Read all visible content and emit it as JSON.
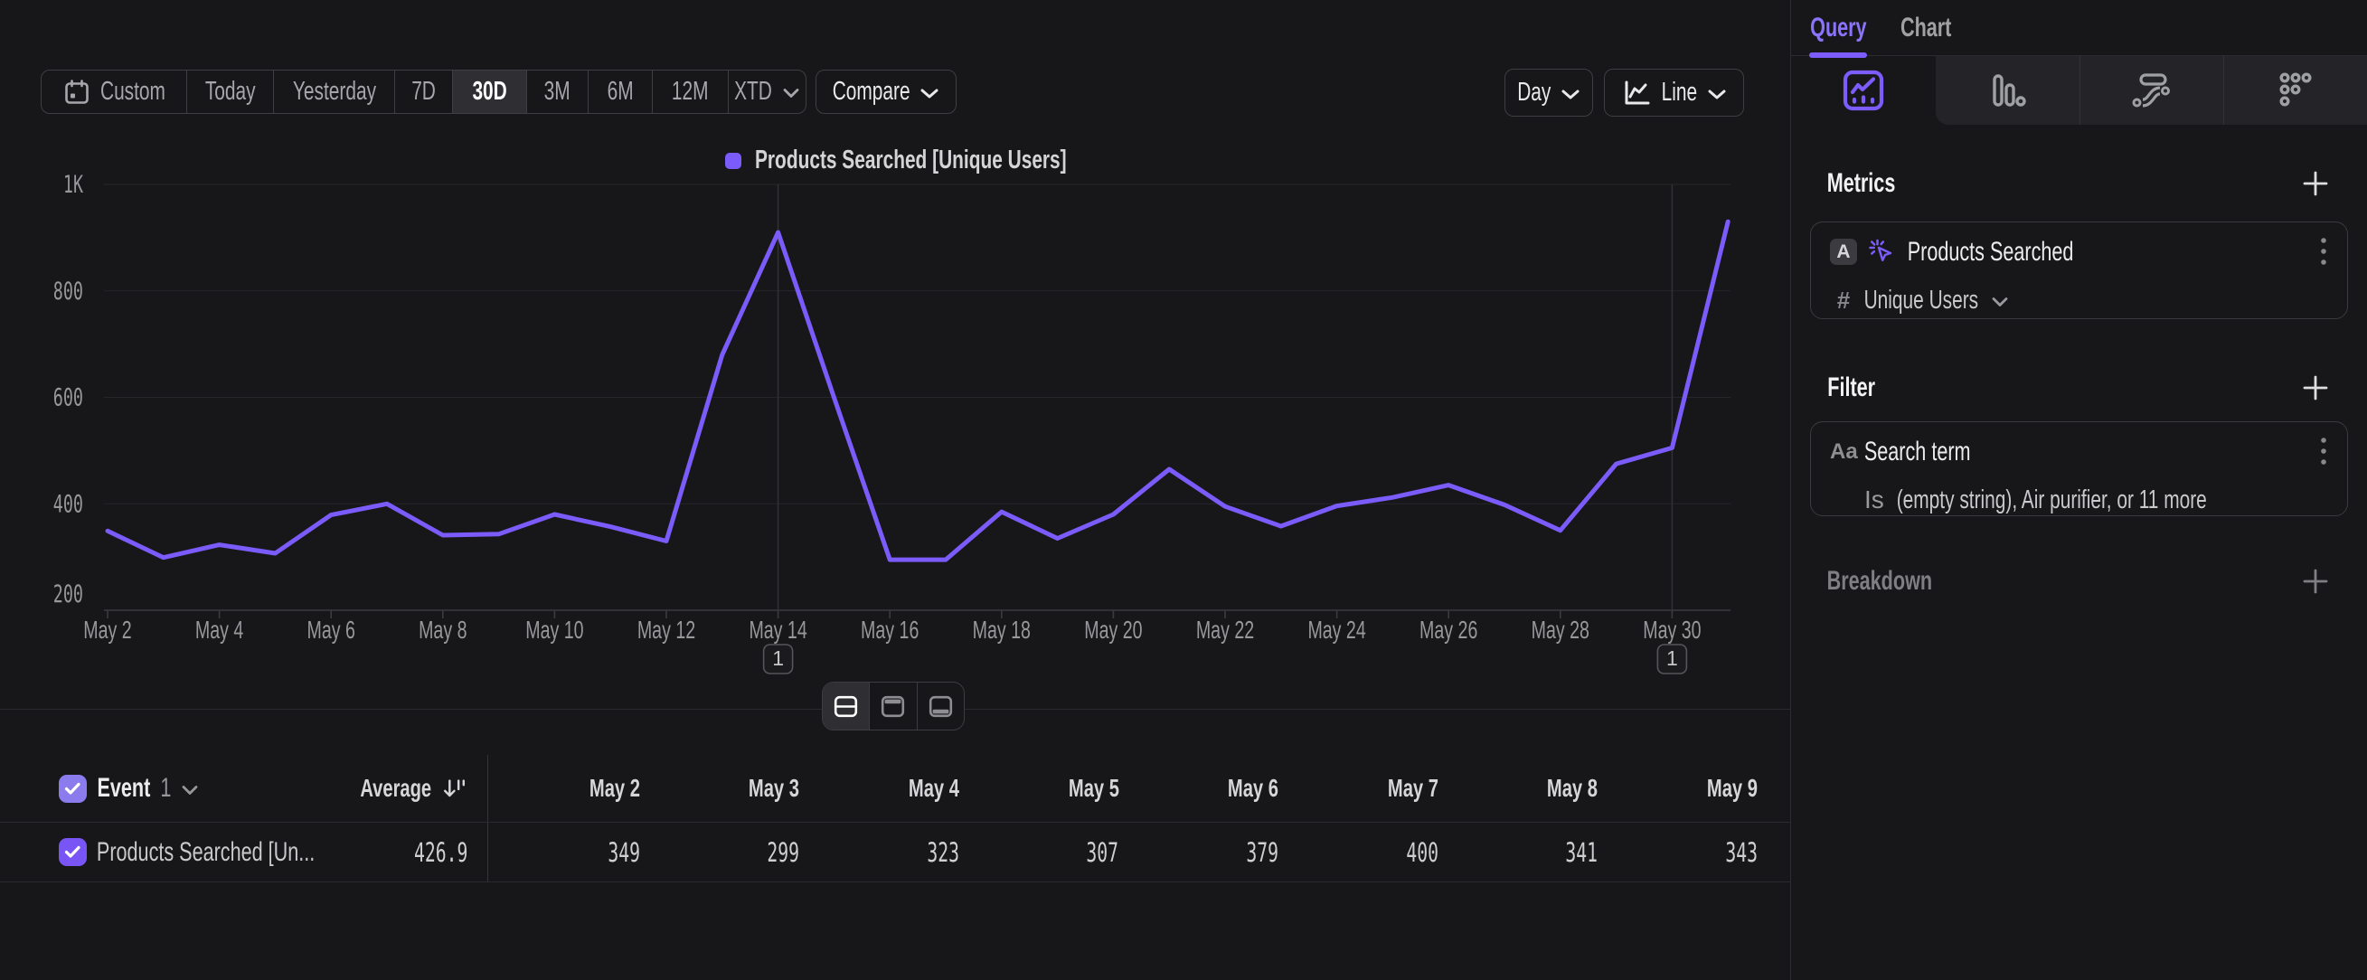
{
  "toolbar": {
    "ranges": [
      {
        "label": "Custom",
        "icon": "calendar-icon"
      },
      {
        "label": "Today"
      },
      {
        "label": "Yesterday"
      },
      {
        "label": "7D"
      },
      {
        "label": "30D"
      },
      {
        "label": "3M"
      },
      {
        "label": "6M"
      },
      {
        "label": "12M"
      },
      {
        "label": "XTD",
        "icon": "chevron-down-icon"
      }
    ],
    "selected_range": "30D",
    "compare_label": "Compare",
    "granularity_label": "Day",
    "chart_type_label": "Line"
  },
  "chart_data": {
    "type": "line",
    "title": "",
    "x": [
      "May 2",
      "May 3",
      "May 4",
      "May 5",
      "May 6",
      "May 7",
      "May 8",
      "May 9",
      "May 10",
      "May 11",
      "May 12",
      "May 13",
      "May 14",
      "May 15",
      "May 16",
      "May 17",
      "May 18",
      "May 19",
      "May 20",
      "May 21",
      "May 22",
      "May 23",
      "May 24",
      "May 25",
      "May 26",
      "May 27",
      "May 28",
      "May 29",
      "May 30",
      "May 31"
    ],
    "x_tick_labels": [
      "May 2",
      "May 4",
      "May 6",
      "May 8",
      "May 10",
      "May 12",
      "May 14",
      "May 16",
      "May 18",
      "May 20",
      "May 22",
      "May 24",
      "May 26",
      "May 28",
      "May 30"
    ],
    "series": [
      {
        "name": "Products Searched [Unique Users]",
        "color": "#7b5cfa",
        "values": [
          349,
          299,
          323,
          307,
          379,
          400,
          341,
          343,
          380,
          357,
          330,
          680,
          910,
          600,
          295,
          295,
          385,
          335,
          380,
          465,
          395,
          358,
          396,
          412,
          435,
          398,
          350,
          475,
          505,
          930
        ]
      }
    ],
    "ylim": [
      200,
      1000
    ],
    "yticks": [
      {
        "value": 1000,
        "label": "1K"
      },
      {
        "value": 800,
        "label": "800"
      },
      {
        "value": 600,
        "label": "600"
      },
      {
        "value": 400,
        "label": "400"
      },
      {
        "value": 200,
        "label": "200"
      }
    ],
    "grid": "horizontal",
    "legend_position": "top-center",
    "annotations": [
      {
        "x": "May 14",
        "label": "1"
      },
      {
        "x": "May 30",
        "label": "1"
      }
    ]
  },
  "layout_toggle": {
    "active": "split-view",
    "options": [
      "split-view",
      "chart-only-view",
      "table-only-view"
    ]
  },
  "table": {
    "event_label": "Event",
    "event_count": "1",
    "average_header": "Average",
    "columns": [
      "May 2",
      "May 3",
      "May 4",
      "May 5",
      "May 6",
      "May 7",
      "May 8",
      "May 9"
    ],
    "rows": [
      {
        "checked": true,
        "name": "Products Searched [Un...",
        "average": "426.9",
        "values": [
          "349",
          "299",
          "323",
          "307",
          "379",
          "400",
          "341",
          "343"
        ]
      }
    ]
  },
  "sidebar": {
    "tabs": [
      {
        "label": "Query",
        "active": true
      },
      {
        "label": "Chart",
        "active": false
      }
    ],
    "view_tabs": [
      {
        "name": "insights",
        "active": true
      },
      {
        "name": "funnel",
        "active": false
      },
      {
        "name": "flows",
        "active": false
      },
      {
        "name": "retention",
        "active": false
      }
    ],
    "metrics": {
      "title": "Metrics",
      "items": [
        {
          "letter": "A",
          "event_icon": "event-sparkle-cursor-icon",
          "name": "Products Searched",
          "measure_prefix": "#",
          "measure": "Unique Users"
        }
      ]
    },
    "filter": {
      "title": "Filter",
      "items": [
        {
          "type_icon": "Aa",
          "name": "Search term",
          "operator": "Is",
          "value": "(empty string), Air purifier, or 11 more"
        }
      ]
    },
    "breakdown": {
      "title": "Breakdown"
    }
  },
  "colors": {
    "background": "#17171a",
    "accent_purple": "#7b5cfa",
    "checkbox_purple": "#7a55f6",
    "border": "#3e3e43",
    "gridline": "#27272b",
    "text_primary": "#ececee",
    "text_secondary": "#a7a7ab"
  },
  "icons": {
    "calendar-icon": "calendar outline with binder rings and day square",
    "chevron-down-icon": "v-shaped chevron",
    "line-chart-icon": "axis with zigzag trend line",
    "sort-descending-icon": "down arrow with two bars",
    "checkbox-check-icon": "white check mark",
    "split-view-icon": "square halved horizontally",
    "chart-only-view-icon": "square with top band filled",
    "table-only-view-icon": "square with bottom band filled",
    "insights-icon": "rounded square with trend line and dots",
    "funnel-icon": "three descending rounded bars",
    "flows-icon": "pill above flowing curve with node dots",
    "retention-icon": "triangular grid of six hollow dots",
    "plus-icon": "thin plus sign",
    "kebab-icon": "three vertical dots",
    "event-sparkle-cursor-icon": "pointer cursor with sparkle rays"
  }
}
